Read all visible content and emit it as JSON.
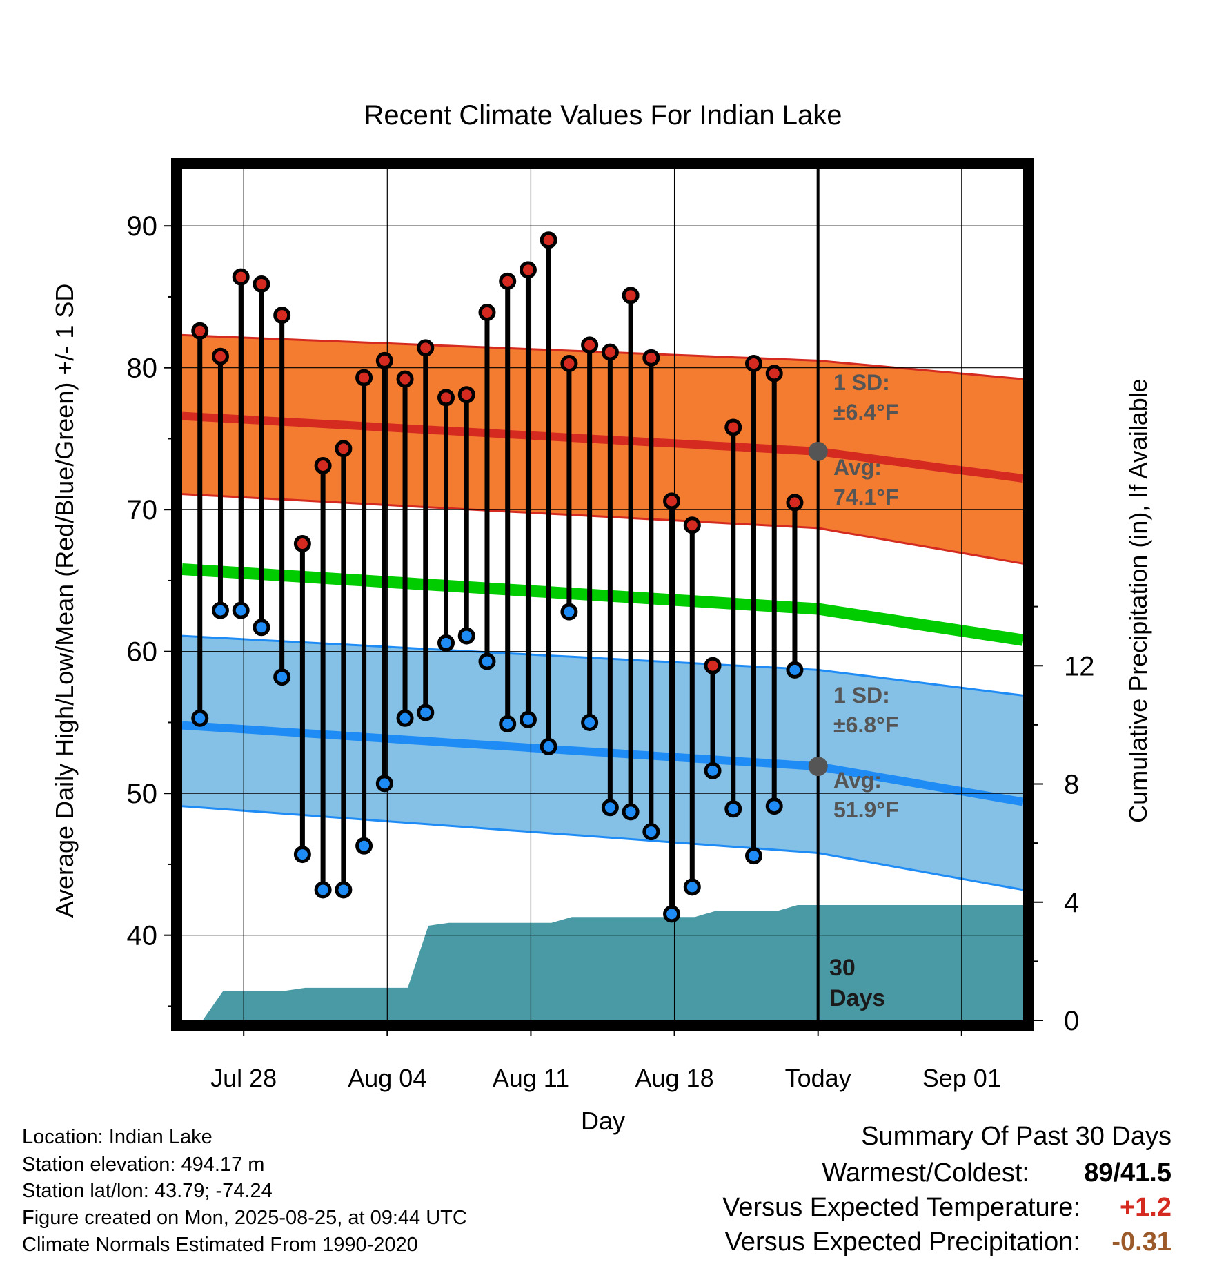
{
  "chart_data": {
    "type": "line",
    "title": "Recent Climate Values For Indian Lake",
    "xlabel": "Day",
    "ylabel": "Average Daily High/Low/Mean (Red/Blue/Green) +/- 1 SD",
    "y2label": "Cumulative Precipitation (in), If Available",
    "xlim": [
      "2025-07-25",
      "2025-09-04"
    ],
    "ylim": [
      34,
      94
    ],
    "y2lim": [
      0,
      28.8
    ],
    "x_ticks": [
      "Jul 28",
      "Aug 04",
      "Aug 11",
      "Aug 18",
      "Today",
      "Sep 01"
    ],
    "y_ticks": [
      40,
      50,
      60,
      70,
      80,
      90
    ],
    "y2_ticks": [
      0,
      4,
      8,
      12
    ],
    "grid": true,
    "today": "2025-08-25",
    "today_label": "Today",
    "window_label_num": "30",
    "window_label_text": "Days",
    "dates": [
      "2025-07-26",
      "2025-07-27",
      "2025-07-28",
      "2025-07-29",
      "2025-07-30",
      "2025-07-31",
      "2025-08-01",
      "2025-08-02",
      "2025-08-03",
      "2025-08-04",
      "2025-08-05",
      "2025-08-06",
      "2025-08-07",
      "2025-08-08",
      "2025-08-09",
      "2025-08-10",
      "2025-08-11",
      "2025-08-12",
      "2025-08-13",
      "2025-08-14",
      "2025-08-15",
      "2025-08-16",
      "2025-08-17",
      "2025-08-18",
      "2025-08-19",
      "2025-08-20",
      "2025-08-21",
      "2025-08-22",
      "2025-08-23",
      "2025-08-24"
    ],
    "observed_high": [
      82.6,
      80.8,
      86.4,
      85.9,
      83.7,
      67.6,
      73.1,
      74.3,
      79.3,
      80.5,
      79.2,
      81.4,
      77.9,
      78.1,
      83.9,
      86.1,
      86.9,
      89.0,
      80.3,
      81.6,
      81.1,
      85.1,
      80.7,
      70.6,
      68.9,
      59.0,
      75.8,
      80.3,
      79.6,
      70.5
    ],
    "observed_low": [
      55.3,
      62.9,
      62.9,
      61.7,
      58.2,
      45.7,
      43.2,
      43.2,
      46.3,
      50.7,
      55.3,
      55.7,
      60.6,
      61.1,
      59.3,
      54.9,
      55.2,
      53.3,
      62.8,
      55.0,
      49.0,
      48.7,
      47.3,
      41.5,
      43.4,
      51.6,
      48.9,
      45.6,
      49.1,
      58.7
    ],
    "normal_x": [
      "2025-07-25",
      "2025-08-25",
      "2025-09-04"
    ],
    "normal_high": [
      76.6,
      74.1,
      72.2
    ],
    "normal_high_upper": [
      82.3,
      80.5,
      79.2
    ],
    "normal_high_lower": [
      71.1,
      68.7,
      66.2
    ],
    "normal_mean": [
      65.8,
      63.0,
      60.8
    ],
    "normal_low": [
      54.8,
      51.9,
      49.4
    ],
    "normal_low_upper": [
      61.1,
      58.7,
      56.9
    ],
    "normal_low_lower": [
      49.1,
      45.8,
      43.2
    ],
    "precip_x": [
      "2025-07-26",
      "2025-07-27",
      "2025-07-28",
      "2025-07-29",
      "2025-07-30",
      "2025-07-31",
      "2025-08-01",
      "2025-08-02",
      "2025-08-03",
      "2025-08-04",
      "2025-08-05",
      "2025-08-06",
      "2025-08-07",
      "2025-08-08",
      "2025-08-09",
      "2025-08-10",
      "2025-08-11",
      "2025-08-12",
      "2025-08-13",
      "2025-08-14",
      "2025-08-15",
      "2025-08-16",
      "2025-08-17",
      "2025-08-18",
      "2025-08-19",
      "2025-08-20",
      "2025-08-21",
      "2025-08-22",
      "2025-08-23",
      "2025-08-24",
      "2025-08-25",
      "2025-09-04"
    ],
    "precip_cumulative": [
      0.0,
      1.0,
      1.0,
      1.0,
      1.0,
      1.1,
      1.1,
      1.1,
      1.1,
      1.1,
      1.1,
      3.2,
      3.3,
      3.3,
      3.3,
      3.3,
      3.3,
      3.3,
      3.5,
      3.5,
      3.5,
      3.5,
      3.5,
      3.5,
      3.5,
      3.7,
      3.7,
      3.7,
      3.7,
      3.9,
      3.9,
      3.9
    ],
    "high_annotation": {
      "sd_label": "1 SD:",
      "sd_value": "±6.4°F",
      "avg_label": "Avg:",
      "avg_value": "74.1°F"
    },
    "low_annotation": {
      "sd_label": "1 SD:",
      "sd_value": "±6.8°F",
      "avg_label": "Avg:",
      "avg_value": "51.9°F"
    },
    "colors": {
      "high_band": "#f47c30",
      "high_line": "#d42a20",
      "high_marker": "#d42a20",
      "low_band": "#85c1e6",
      "low_line": "#1f8cf5",
      "low_marker": "#1f8cf5",
      "mean_line": "#00cc00",
      "precip_fill": "#4a9aa5",
      "avg_dot": "#555555"
    }
  },
  "footer": {
    "location": "Location: Indian Lake",
    "elevation": "Station elevation: 494.17 m",
    "latlon": "Station lat/lon: 43.79; -74.24",
    "created": "Figure created on Mon, 2025-08-25, at 09:44 UTC",
    "normals": "Climate Normals Estimated From 1990-2020"
  },
  "summary": {
    "heading": "Summary Of Past 30 Days",
    "warm_cold_label": "Warmest/Coldest:",
    "warm_cold_value": "89/41.5",
    "temp_label": "Versus Expected Temperature:",
    "temp_value": "+1.2",
    "temp_color": "#d42a20",
    "precip_label": "Versus Expected Precipitation:",
    "precip_value": "-0.31",
    "precip_color": "#9c5a2a"
  }
}
